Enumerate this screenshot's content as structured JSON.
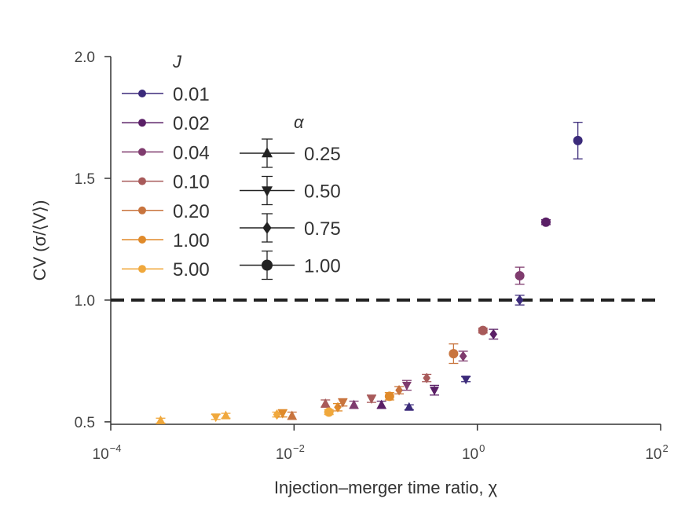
{
  "chart_data": {
    "type": "scatter",
    "title": "",
    "xlabel": "Injection–merger time ratio, χ",
    "ylabel": "CV (σ/⟨V⟩)",
    "xscale": "log",
    "xlim": [
      0.0001,
      100
    ],
    "ylim": [
      0.49,
      2.0
    ],
    "xticks": [
      {
        "value": 0.0001,
        "base": "10",
        "exp": "−4"
      },
      {
        "value": 0.01,
        "base": "10",
        "exp": "−2"
      },
      {
        "value": 1,
        "base": "10",
        "exp": "0"
      },
      {
        "value": 100,
        "base": "10",
        "exp": "2"
      }
    ],
    "yticks": [
      {
        "value": 0.5,
        "label": "0.5"
      },
      {
        "value": 1.0,
        "label": "1.0"
      },
      {
        "value": 1.5,
        "label": "1.5"
      },
      {
        "value": 2.0,
        "label": "2.0"
      }
    ],
    "reference_line": {
      "y": 1.0,
      "style": "dashed",
      "color": "#222222"
    },
    "legend_J": {
      "title": "J",
      "entries": [
        {
          "label": "0.01",
          "color": "#3b2a7a"
        },
        {
          "label": "0.02",
          "color": "#5a1f66"
        },
        {
          "label": "0.04",
          "color": "#7f3b6e"
        },
        {
          "label": "0.10",
          "color": "#a85a5a"
        },
        {
          "label": "0.20",
          "color": "#c8743e"
        },
        {
          "label": "1.00",
          "color": "#e08a2a"
        },
        {
          "label": "5.00",
          "color": "#f0a83c"
        }
      ]
    },
    "legend_alpha": {
      "title": "α",
      "entries": [
        {
          "label": "0.25",
          "marker": "triangle-up"
        },
        {
          "label": "0.50",
          "marker": "triangle-down"
        },
        {
          "label": "0.75",
          "marker": "diamond"
        },
        {
          "label": "1.00",
          "marker": "circle"
        }
      ]
    },
    "points": [
      {
        "x": 0.00035,
        "y": 0.505,
        "J": "5.00",
        "alpha": "0.25",
        "err": 0.01
      },
      {
        "x": 0.0014,
        "y": 0.52,
        "J": "5.00",
        "alpha": "0.50",
        "err": 0.01
      },
      {
        "x": 0.0018,
        "y": 0.525,
        "J": "5.00",
        "alpha": "0.25",
        "err": 0.01
      },
      {
        "x": 0.0065,
        "y": 0.53,
        "J": "5.00",
        "alpha": "0.75",
        "err": 0.01
      },
      {
        "x": 0.0075,
        "y": 0.535,
        "J": "1.00",
        "alpha": "0.50",
        "err": 0.015
      },
      {
        "x": 0.0095,
        "y": 0.525,
        "J": "0.20",
        "alpha": "0.25",
        "err": 0.015
      },
      {
        "x": 0.022,
        "y": 0.575,
        "J": "0.10",
        "alpha": "0.25",
        "err": 0.015
      },
      {
        "x": 0.024,
        "y": 0.54,
        "J": "5.00",
        "alpha": "1.00",
        "err": 0.01
      },
      {
        "x": 0.03,
        "y": 0.56,
        "J": "1.00",
        "alpha": "0.75",
        "err": 0.015
      },
      {
        "x": 0.034,
        "y": 0.58,
        "J": "0.20",
        "alpha": "0.50",
        "err": 0.015
      },
      {
        "x": 0.045,
        "y": 0.57,
        "J": "0.04",
        "alpha": "0.25",
        "err": 0.015
      },
      {
        "x": 0.07,
        "y": 0.595,
        "J": "0.10",
        "alpha": "0.50",
        "err": 0.015
      },
      {
        "x": 0.09,
        "y": 0.57,
        "J": "0.02",
        "alpha": "0.25",
        "err": 0.015
      },
      {
        "x": 0.11,
        "y": 0.605,
        "J": "1.00",
        "alpha": "1.00",
        "err": 0.015
      },
      {
        "x": 0.14,
        "y": 0.63,
        "J": "0.20",
        "alpha": "0.75",
        "err": 0.015
      },
      {
        "x": 0.17,
        "y": 0.65,
        "J": "0.04",
        "alpha": "0.50",
        "err": 0.02
      },
      {
        "x": 0.18,
        "y": 0.56,
        "J": "0.01",
        "alpha": "0.25",
        "err": 0.01
      },
      {
        "x": 0.28,
        "y": 0.68,
        "J": "0.10",
        "alpha": "0.75",
        "err": 0.015
      },
      {
        "x": 0.34,
        "y": 0.63,
        "J": "0.02",
        "alpha": "0.50",
        "err": 0.02
      },
      {
        "x": 0.55,
        "y": 0.78,
        "J": "0.20",
        "alpha": "1.00",
        "err": 0.04
      },
      {
        "x": 0.7,
        "y": 0.77,
        "J": "0.04",
        "alpha": "0.75",
        "err": 0.02
      },
      {
        "x": 0.75,
        "y": 0.675,
        "J": "0.01",
        "alpha": "0.50",
        "err": 0.01
      },
      {
        "x": 1.15,
        "y": 0.875,
        "J": "0.10",
        "alpha": "1.00",
        "err": 0.01
      },
      {
        "x": 1.5,
        "y": 0.86,
        "J": "0.02",
        "alpha": "0.75",
        "err": 0.02
      },
      {
        "x": 2.9,
        "y": 1.0,
        "J": "0.01",
        "alpha": "0.75",
        "err": 0.02
      },
      {
        "x": 2.9,
        "y": 1.1,
        "J": "0.04",
        "alpha": "1.00",
        "err": 0.035
      },
      {
        "x": 5.6,
        "y": 1.32,
        "J": "0.02",
        "alpha": "1.00",
        "err": 0.01
      },
      {
        "x": 12.5,
        "y": 1.655,
        "J": "0.01",
        "alpha": "1.00",
        "err": 0.075
      }
    ]
  }
}
